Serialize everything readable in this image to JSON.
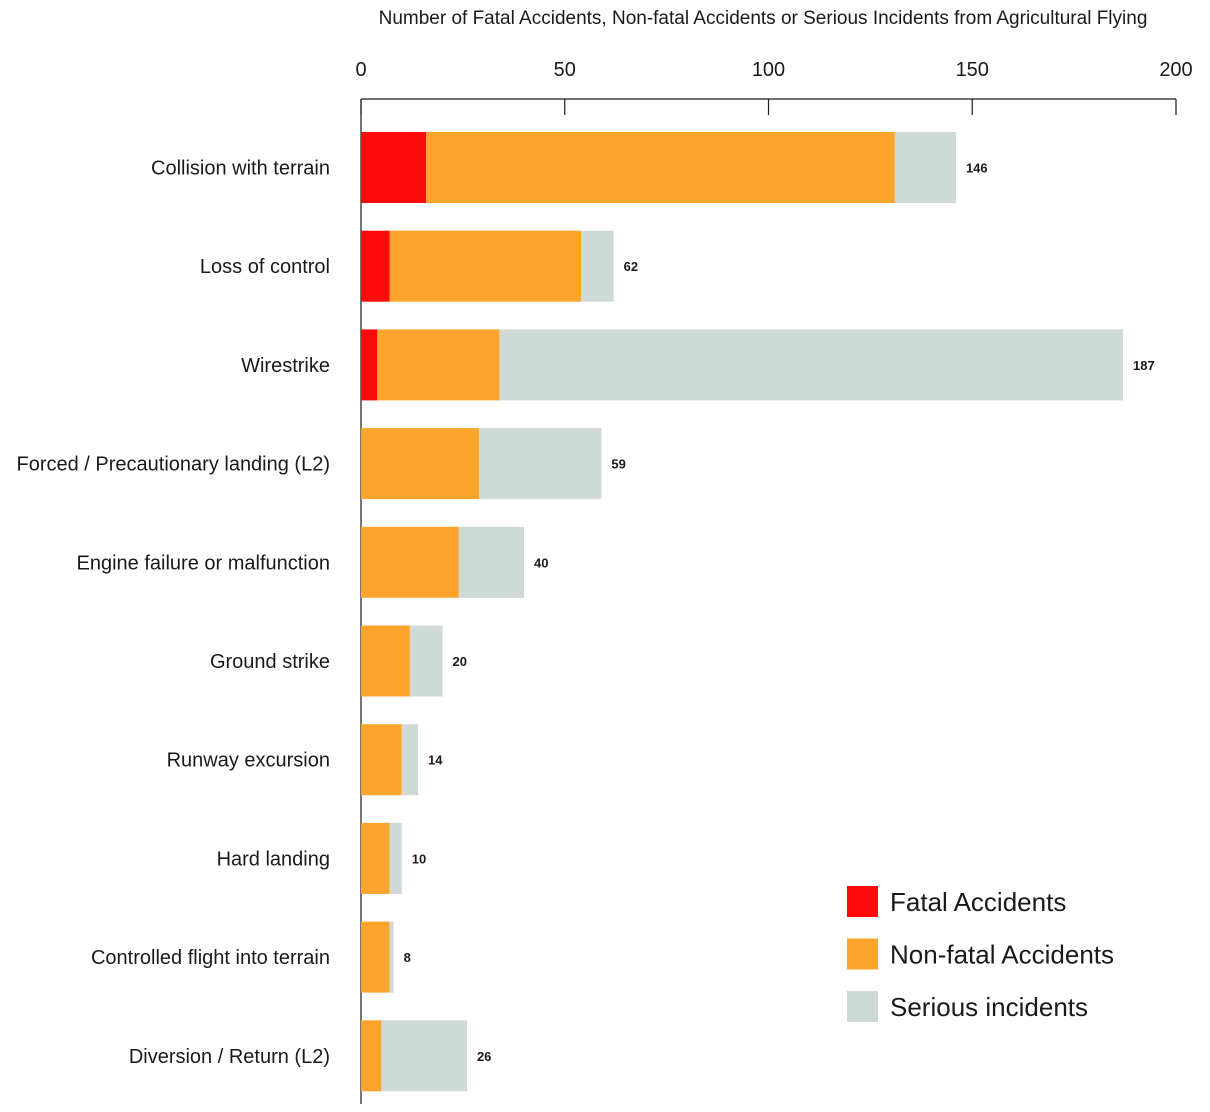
{
  "chart_data": {
    "type": "bar",
    "orientation": "horizontal",
    "stacked": true,
    "xlabel": "Number of Fatal Accidents, Non-fatal Accidents or Serious Incidents from Agricultural Flying",
    "xlim": [
      0,
      200
    ],
    "x_ticks": [
      0,
      50,
      100,
      150,
      200
    ],
    "x_axis_position": "top",
    "grid": false,
    "legend_position": "bottom-right",
    "categories": [
      "Collision with terrain",
      "Loss of control",
      "Wirestrike",
      "Forced / Precautionary landing (L2)",
      "Engine failure or malfunction",
      "Ground strike",
      "Runway excursion",
      "Hard landing",
      "Controlled flight into terrain",
      "Diversion / Return (L2)"
    ],
    "series": [
      {
        "name": "Fatal Accidents",
        "color": "#ff0a0a",
        "values": [
          16,
          7,
          4,
          0,
          0,
          0,
          0,
          0,
          0,
          0
        ]
      },
      {
        "name": "Non-fatal Accidents",
        "color": "#fca42c",
        "values": [
          115,
          47,
          30,
          29,
          24,
          12,
          10,
          7,
          7,
          5
        ]
      },
      {
        "name": "Serious incidents",
        "color": "#cfd9d6",
        "values": [
          15,
          8,
          153,
          30,
          16,
          8,
          4,
          3,
          1,
          21
        ]
      }
    ],
    "totals": [
      "146",
      "62",
      "187",
      "59",
      "40",
      "20",
      "14",
      "10",
      "8",
      "26"
    ]
  }
}
